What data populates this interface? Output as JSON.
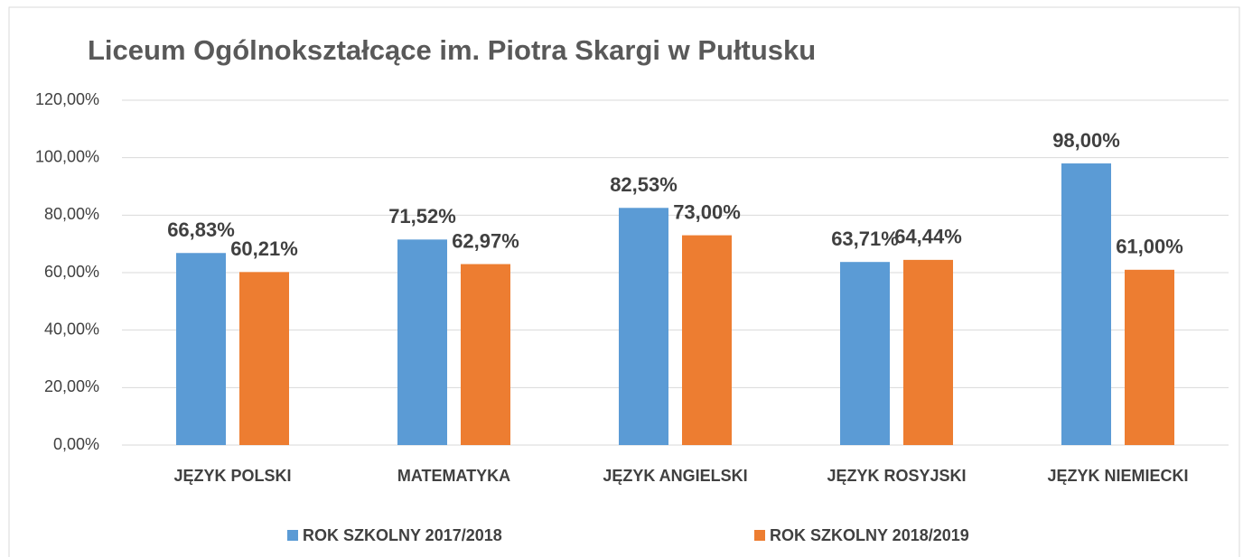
{
  "chart_data": {
    "type": "bar",
    "title": "Liceum Ogólnokształcące im. Piotra Skargi w Pułtusku",
    "categories": [
      "JĘZYK POLSKI",
      "MATEMATYKA",
      "JĘZYK ANGIELSKI",
      "JĘZYK ROSYJSKI",
      "JĘZYK NIEMIECKI"
    ],
    "series": [
      {
        "name": "ROK SZKOLNY 2017/2018",
        "color": "#5b9bd5",
        "values": [
          66.83,
          71.52,
          82.53,
          63.71,
          98.0
        ],
        "value_labels": [
          "66,83%",
          "71,52%",
          "82,53%",
          "63,71%",
          "98,00%"
        ]
      },
      {
        "name": "ROK SZKOLNY 2018/2019",
        "color": "#ed7d31",
        "values": [
          60.21,
          62.97,
          73.0,
          64.44,
          61.0
        ],
        "value_labels": [
          "60,21%",
          "62,97%",
          "73,00%",
          "64,44%",
          "61,00%"
        ]
      }
    ],
    "ylim": [
      0,
      120
    ],
    "yticks": [
      {
        "value": 0,
        "label": "0,00%"
      },
      {
        "value": 20,
        "label": "20,00%"
      },
      {
        "value": 40,
        "label": "40,00%"
      },
      {
        "value": 60,
        "label": "60,00%"
      },
      {
        "value": 80,
        "label": "80,00%"
      },
      {
        "value": 100,
        "label": "100,00%"
      },
      {
        "value": 120,
        "label": "120,00%"
      }
    ],
    "grid": true,
    "legend": "bottom"
  }
}
